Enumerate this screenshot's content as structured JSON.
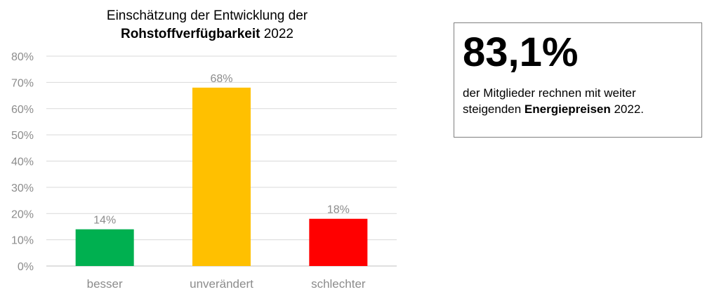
{
  "chart_data": {
    "type": "bar",
    "title_line1": "Einschätzung der Entwicklung der",
    "title_bold": "Rohstoffverfügbarkeit",
    "title_suffix": " 2022",
    "categories": [
      "besser",
      "unverändert",
      "schlechter"
    ],
    "values": [
      14,
      68,
      18
    ],
    "data_labels": [
      "14%",
      "68%",
      "18%"
    ],
    "colors": [
      "#00b050",
      "#ffc000",
      "#ff0000"
    ],
    "ylim": [
      0,
      80
    ],
    "yticks": [
      0,
      10,
      20,
      30,
      40,
      50,
      60,
      70,
      80
    ],
    "ytick_labels": [
      "0%",
      "10%",
      "20%",
      "30%",
      "40%",
      "50%",
      "60%",
      "70%",
      "80%"
    ],
    "grid": true,
    "xlabel": "",
    "ylabel": ""
  },
  "info_box": {
    "big_number": "83,1%",
    "text_before": "der Mitglieder rechnen mit weiter steigenden ",
    "text_bold": "Energiepreisen",
    "text_after": " 2022."
  }
}
